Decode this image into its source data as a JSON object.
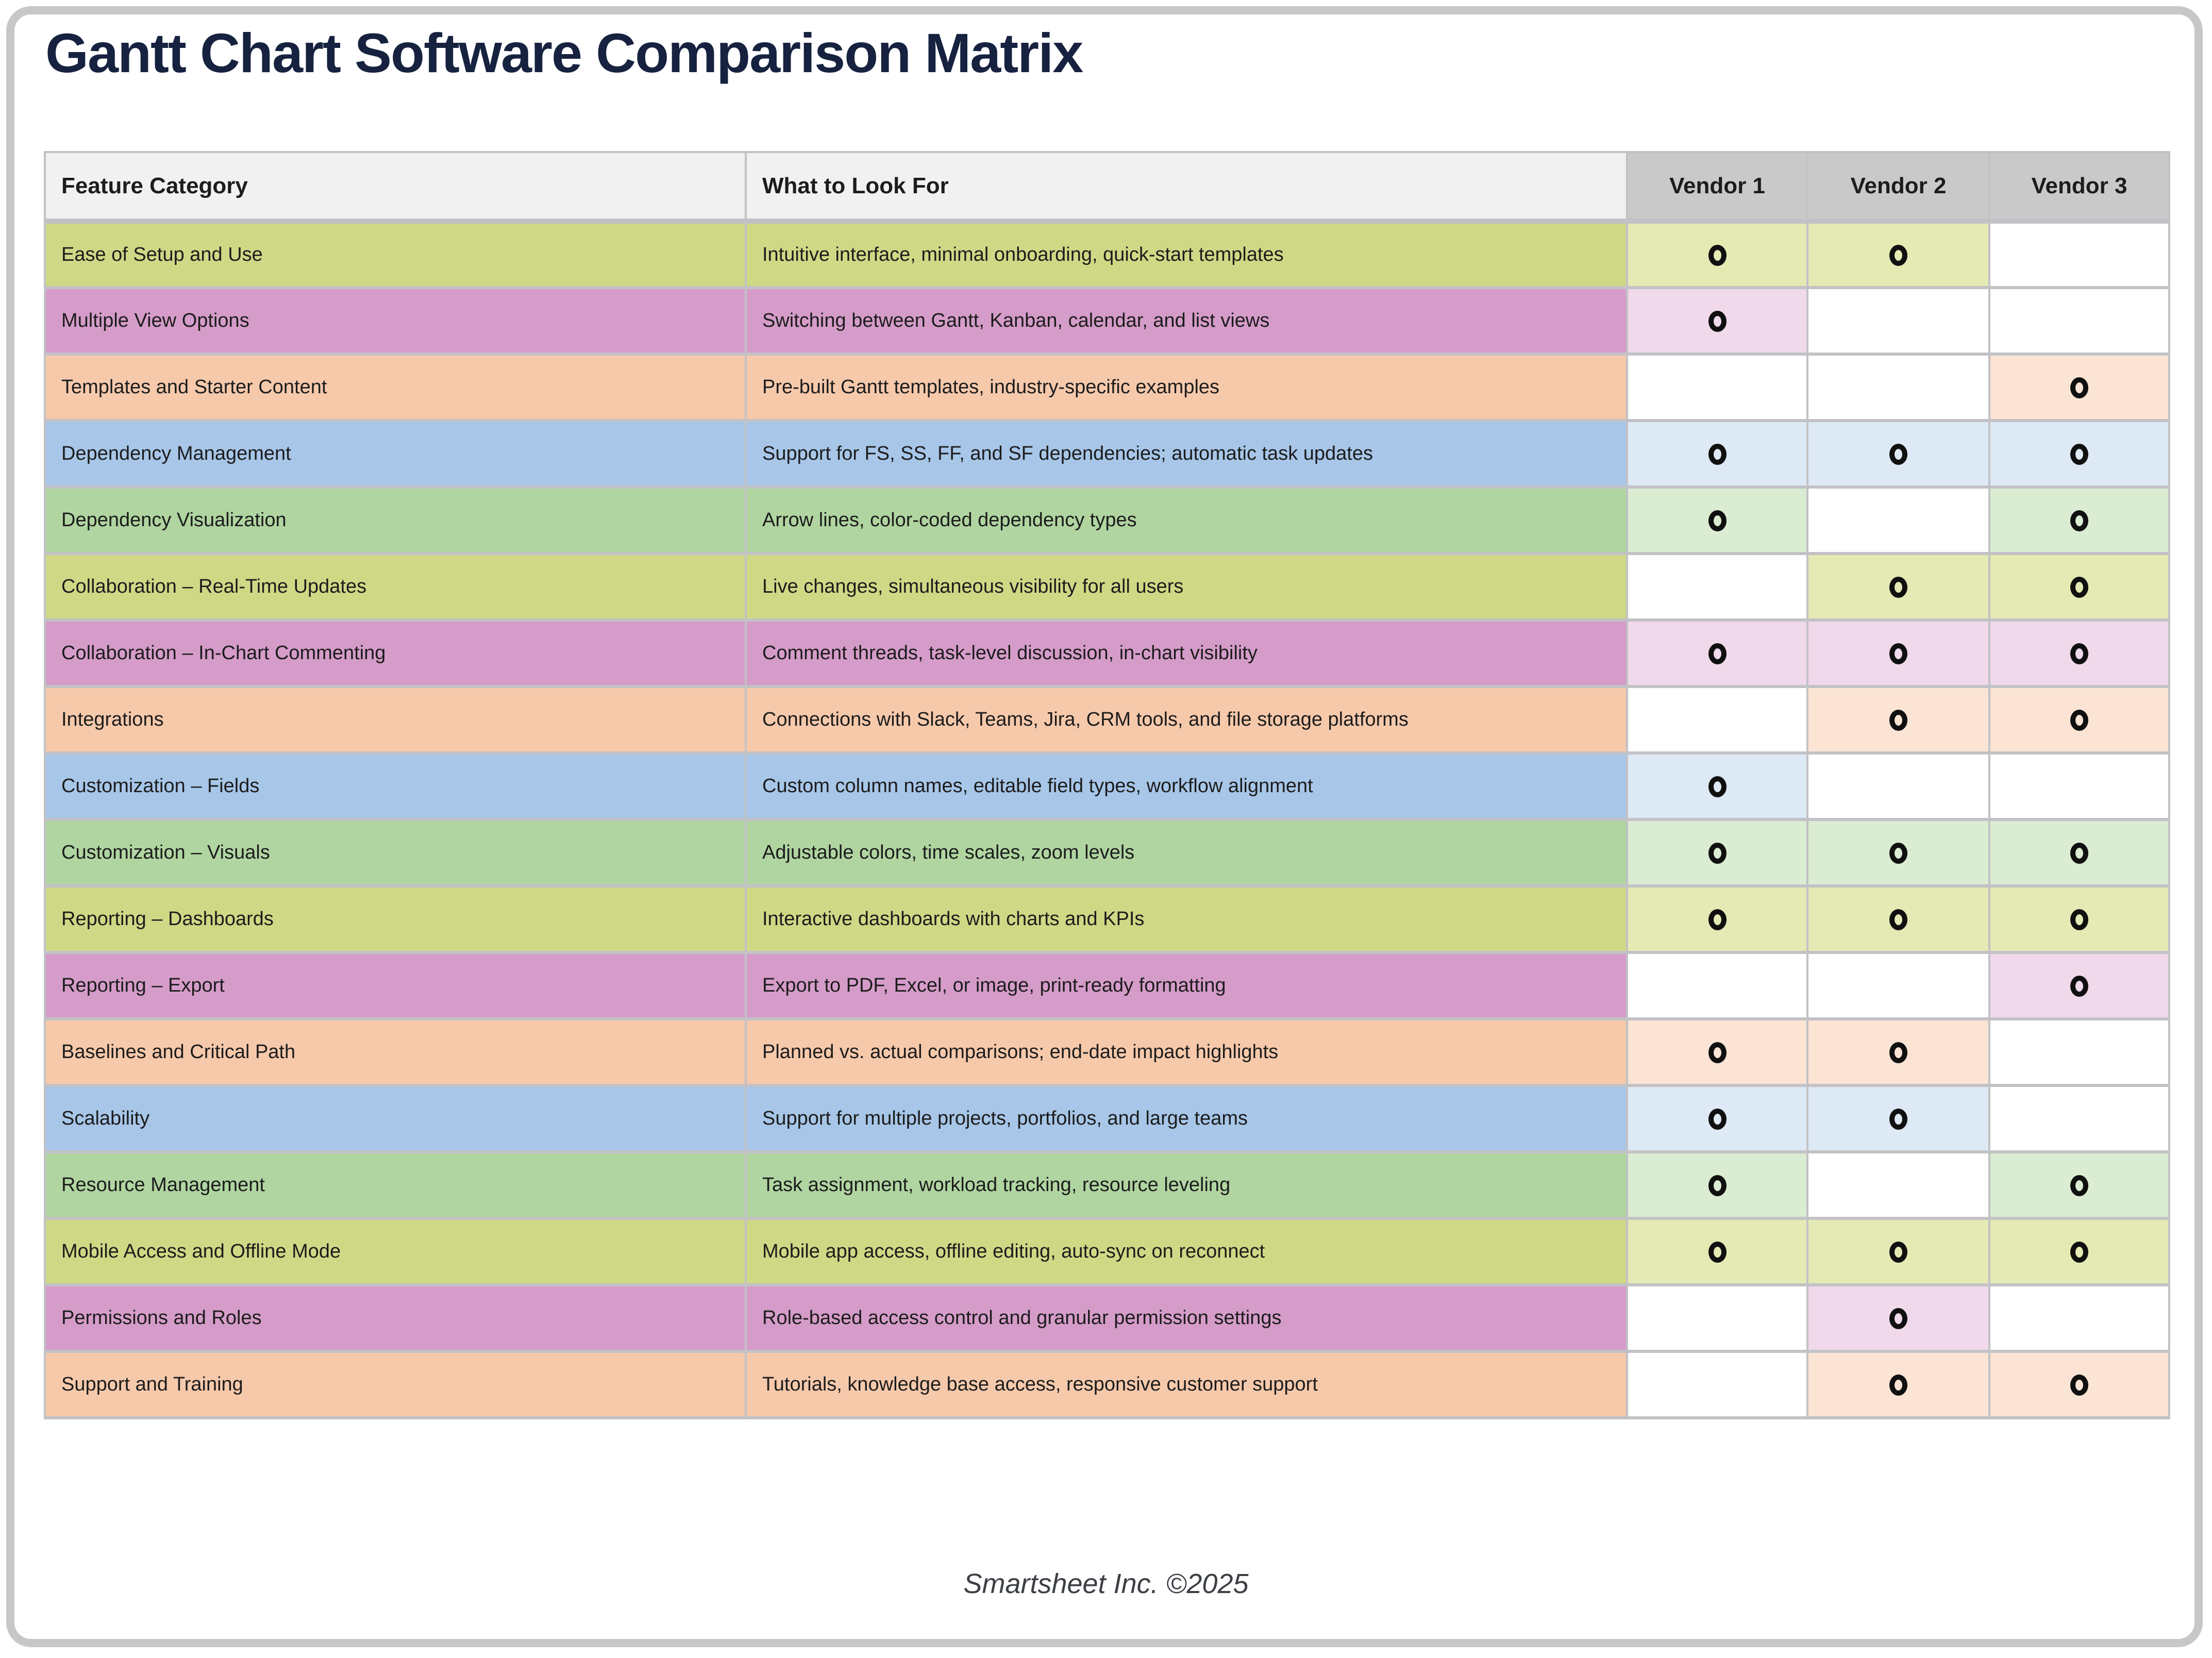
{
  "page": {
    "title": "Gantt Chart Software Comparison Matrix",
    "footer": "Smartsheet Inc. ©2025"
  },
  "icons": {
    "vendor_mark": "circle-mark-icon"
  },
  "colors": {
    "title_text": "#16223f",
    "body_text": "#1c1c1c",
    "footer_text": "#3c4045",
    "header_bg": "#f1f1f1",
    "vendor_header_bg": "#c9c9c9",
    "grid": "#c2c2c6",
    "mark": "#101010",
    "card_border": "#c7c7c7"
  },
  "palettes": {
    "yellow-green": {
      "base": "#cfd885",
      "tint": "#e5e9b3"
    },
    "pink": {
      "base": "#d59cc9",
      "tint": "#f0d9ea"
    },
    "orange": {
      "base": "#f6c9ab",
      "tint": "#fbe4d4"
    },
    "blue": {
      "base": "#a7c6e8",
      "tint": "#dde9f5"
    },
    "green": {
      "base": "#b0d5a1",
      "tint": "#daecd2"
    }
  },
  "table": {
    "headers": [
      "Feature Category",
      "What to Look For",
      "Vendor 1",
      "Vendor 2",
      "Vendor 3"
    ],
    "rows": [
      {
        "category": "Ease of Setup and Use",
        "look_for": "Intuitive interface, minimal onboarding, quick-start templates",
        "palette": "yellow-green",
        "vendors": [
          true,
          true,
          false
        ]
      },
      {
        "category": "Multiple View Options",
        "look_for": "Switching between Gantt, Kanban, calendar, and list views",
        "palette": "pink",
        "vendors": [
          true,
          false,
          false
        ]
      },
      {
        "category": "Templates and Starter Content",
        "look_for": "Pre-built Gantt templates, industry-specific examples",
        "palette": "orange",
        "vendors": [
          false,
          false,
          true
        ]
      },
      {
        "category": "Dependency Management",
        "look_for": "Support for FS, SS, FF, and SF dependencies; automatic task updates",
        "palette": "blue",
        "vendors": [
          true,
          true,
          true
        ]
      },
      {
        "category": "Dependency Visualization",
        "look_for": "Arrow lines, color-coded dependency types",
        "palette": "green",
        "vendors": [
          true,
          false,
          true
        ]
      },
      {
        "category": "Collaboration – Real-Time Updates",
        "look_for": "Live changes, simultaneous visibility for all users",
        "palette": "yellow-green",
        "vendors": [
          false,
          true,
          true
        ]
      },
      {
        "category": "Collaboration – In-Chart Commenting",
        "look_for": "Comment threads, task-level discussion, in-chart visibility",
        "palette": "pink",
        "vendors": [
          true,
          true,
          true
        ]
      },
      {
        "category": "Integrations",
        "look_for": "Connections with Slack, Teams, Jira, CRM tools, and file storage platforms",
        "palette": "orange",
        "vendors": [
          false,
          true,
          true
        ]
      },
      {
        "category": "Customization – Fields",
        "look_for": "Custom column names, editable field types, workflow alignment",
        "palette": "blue",
        "vendors": [
          true,
          false,
          false
        ]
      },
      {
        "category": "Customization – Visuals",
        "look_for": "Adjustable colors, time scales, zoom levels",
        "palette": "green",
        "vendors": [
          true,
          true,
          true
        ]
      },
      {
        "category": "Reporting – Dashboards",
        "look_for": "Interactive dashboards with charts and KPIs",
        "palette": "yellow-green",
        "vendors": [
          true,
          true,
          true
        ]
      },
      {
        "category": "Reporting – Export",
        "look_for": "Export to PDF, Excel, or image, print-ready formatting",
        "palette": "pink",
        "vendors": [
          false,
          false,
          true
        ]
      },
      {
        "category": "Baselines and Critical Path",
        "look_for": "Planned vs. actual comparisons; end-date impact highlights",
        "palette": "orange",
        "vendors": [
          true,
          true,
          false
        ]
      },
      {
        "category": "Scalability",
        "look_for": "Support for multiple projects, portfolios, and large teams",
        "palette": "blue",
        "vendors": [
          true,
          true,
          false
        ]
      },
      {
        "category": "Resource Management",
        "look_for": "Task assignment, workload tracking, resource leveling",
        "palette": "green",
        "vendors": [
          true,
          false,
          true
        ]
      },
      {
        "category": "Mobile Access and Offline Mode",
        "look_for": "Mobile app access, offline editing, auto-sync on reconnect",
        "palette": "yellow-green",
        "vendors": [
          true,
          true,
          true
        ]
      },
      {
        "category": "Permissions and Roles",
        "look_for": "Role-based access control and granular permission settings",
        "palette": "pink",
        "vendors": [
          false,
          true,
          false
        ]
      },
      {
        "category": "Support and Training",
        "look_for": "Tutorials, knowledge base access, responsive customer support",
        "palette": "orange",
        "vendors": [
          false,
          true,
          true
        ]
      }
    ]
  }
}
